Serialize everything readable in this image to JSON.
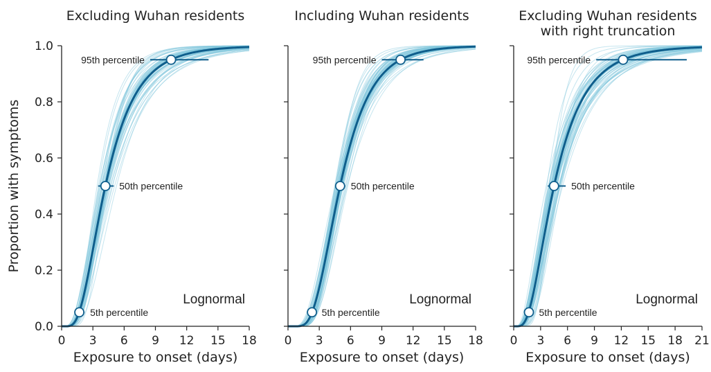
{
  "chart_data": [
    {
      "type": "line",
      "title_lines": [
        "Excluding Wuhan residents"
      ],
      "xlabel": "Exposure to onset (days)",
      "ylabel": "Proportion with symptoms",
      "xlim": [
        0,
        18
      ],
      "ylim": [
        0,
        1
      ],
      "xticks": [
        "0",
        "3",
        "6",
        "9",
        "12",
        "15",
        "18"
      ],
      "yticks": [
        "0.0",
        "0.2",
        "0.4",
        "0.6",
        "0.8",
        "1.0"
      ],
      "show_ylabels": true,
      "distribution_label": "Lognormal",
      "series_type": "lognormal CDF",
      "median_days": 4.2,
      "p95_days": 10.5,
      "posterior_draws": 60,
      "points": [
        {
          "percentile": 0.05,
          "x": 1.7,
          "ci": [
            1.3,
            2.2
          ],
          "label": "5th percentile"
        },
        {
          "percentile": 0.5,
          "x": 4.2,
          "ci": [
            3.5,
            5.0
          ],
          "label": "50th percentile"
        },
        {
          "percentile": 0.95,
          "x": 10.5,
          "ci": [
            8.5,
            14.1
          ],
          "label": "95th percentile"
        }
      ]
    },
    {
      "type": "line",
      "title_lines": [
        "Including Wuhan residents"
      ],
      "xlabel": "Exposure to onset (days)",
      "ylabel": "",
      "xlim": [
        0,
        18
      ],
      "ylim": [
        0,
        1
      ],
      "xticks": [
        "0",
        "3",
        "6",
        "9",
        "12",
        "15",
        "18"
      ],
      "yticks": [
        "0.0",
        "0.2",
        "0.4",
        "0.6",
        "0.8",
        "1.0"
      ],
      "show_ylabels": false,
      "distribution_label": "Lognormal",
      "series_type": "lognormal CDF",
      "median_days": 5.0,
      "p95_days": 10.8,
      "posterior_draws": 60,
      "points": [
        {
          "percentile": 0.05,
          "x": 2.3,
          "ci": [
            1.9,
            2.7
          ],
          "label": "5th percentile"
        },
        {
          "percentile": 0.5,
          "x": 5.0,
          "ci": [
            4.6,
            5.5
          ],
          "label": "50th percentile"
        },
        {
          "percentile": 0.95,
          "x": 10.8,
          "ci": [
            9.0,
            13.0
          ],
          "label": "95th percentile"
        }
      ]
    },
    {
      "type": "line",
      "title_lines": [
        "Excluding Wuhan residents",
        "with right truncation"
      ],
      "xlabel": "Exposure to onset (days)",
      "ylabel": "",
      "xlim": [
        0,
        21
      ],
      "ylim": [
        0,
        1
      ],
      "xticks": [
        "0",
        "3",
        "6",
        "9",
        "12",
        "15",
        "18",
        "21"
      ],
      "yticks": [
        "0.0",
        "0.2",
        "0.4",
        "0.6",
        "0.8",
        "1.0"
      ],
      "show_ylabels": false,
      "distribution_label": "Lognormal",
      "series_type": "lognormal CDF",
      "median_days": 4.5,
      "p95_days": 12.2,
      "posterior_draws": 60,
      "points": [
        {
          "percentile": 0.05,
          "x": 1.7,
          "ci": [
            1.3,
            2.2
          ],
          "label": "5th percentile"
        },
        {
          "percentile": 0.5,
          "x": 4.5,
          "ci": [
            3.8,
            5.8
          ],
          "label": "50th percentile"
        },
        {
          "percentile": 0.95,
          "x": 12.2,
          "ci": [
            9.2,
            19.3
          ],
          "label": "95th percentile"
        }
      ]
    }
  ],
  "colors": {
    "main_curve": "#0f5e8c",
    "draw_curves": "#7fc6dc",
    "marker_fill": "#ffffff",
    "axis": "#222222"
  }
}
